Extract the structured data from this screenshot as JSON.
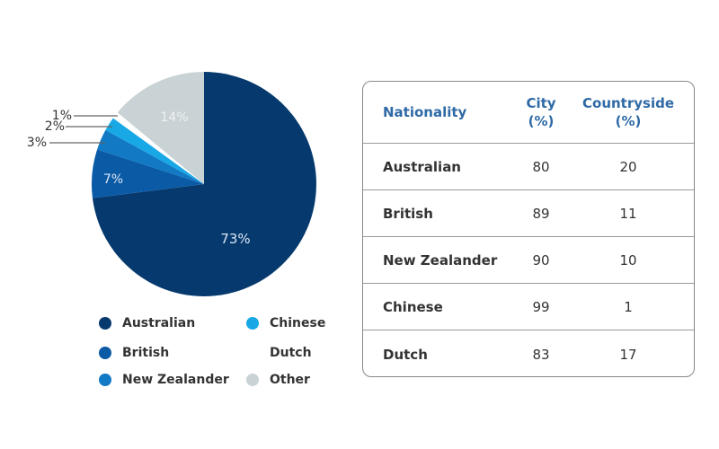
{
  "chart_data": [
    {
      "type": "pie",
      "title": "",
      "categories": [
        "Australian",
        "British",
        "New Zealander",
        "Chinese",
        "Dutch",
        "Other"
      ],
      "values": [
        73,
        7,
        3,
        2,
        1,
        14
      ],
      "labels": [
        "73%",
        "7%",
        "3%",
        "2%",
        "1%",
        "14%"
      ],
      "colors": [
        "#063a6e",
        "#0a5aa6",
        "#1279c4",
        "#19a8e6",
        "#ffffff",
        "#c9d2d4"
      ],
      "legend_position": "bottom"
    },
    {
      "type": "table",
      "columns": [
        "Nationality",
        "City (%)",
        "Countryside (%)"
      ],
      "rows": [
        [
          "Australian",
          80,
          20
        ],
        [
          "British",
          89,
          11
        ],
        [
          "New Zealander",
          90,
          10
        ],
        [
          "Chinese",
          99,
          1
        ],
        [
          "Dutch",
          83,
          17
        ]
      ]
    }
  ],
  "pie": {
    "labels": {
      "australian": "73%",
      "british": "7%",
      "nz": "3%",
      "chinese": "2%",
      "dutch": "1%",
      "other": "14%"
    }
  },
  "legend": [
    {
      "label": "Australian",
      "color": "#063a6e"
    },
    {
      "label": "British",
      "color": "#0a5aa6"
    },
    {
      "label": "New Zealander",
      "color": "#1279c4"
    },
    {
      "label": "Chinese",
      "color": "#19a8e6"
    },
    {
      "label": "Dutch",
      "color": "#ffffff"
    },
    {
      "label": "Other",
      "color": "#c9d2d4"
    }
  ],
  "table": {
    "header": {
      "nationality": "Nationality",
      "city": "City",
      "city_unit": "(%)",
      "countryside": "Countryside",
      "countryside_unit": "(%)"
    },
    "rows": [
      {
        "nationality": "Australian",
        "city": "80",
        "countryside": "20"
      },
      {
        "nationality": "British",
        "city": "89",
        "countryside": "11"
      },
      {
        "nationality": "New Zealander",
        "city": "90",
        "countryside": "10"
      },
      {
        "nationality": "Chinese",
        "city": "99",
        "countryside": "1"
      },
      {
        "nationality": "Dutch",
        "city": "83",
        "countryside": "17"
      }
    ]
  }
}
